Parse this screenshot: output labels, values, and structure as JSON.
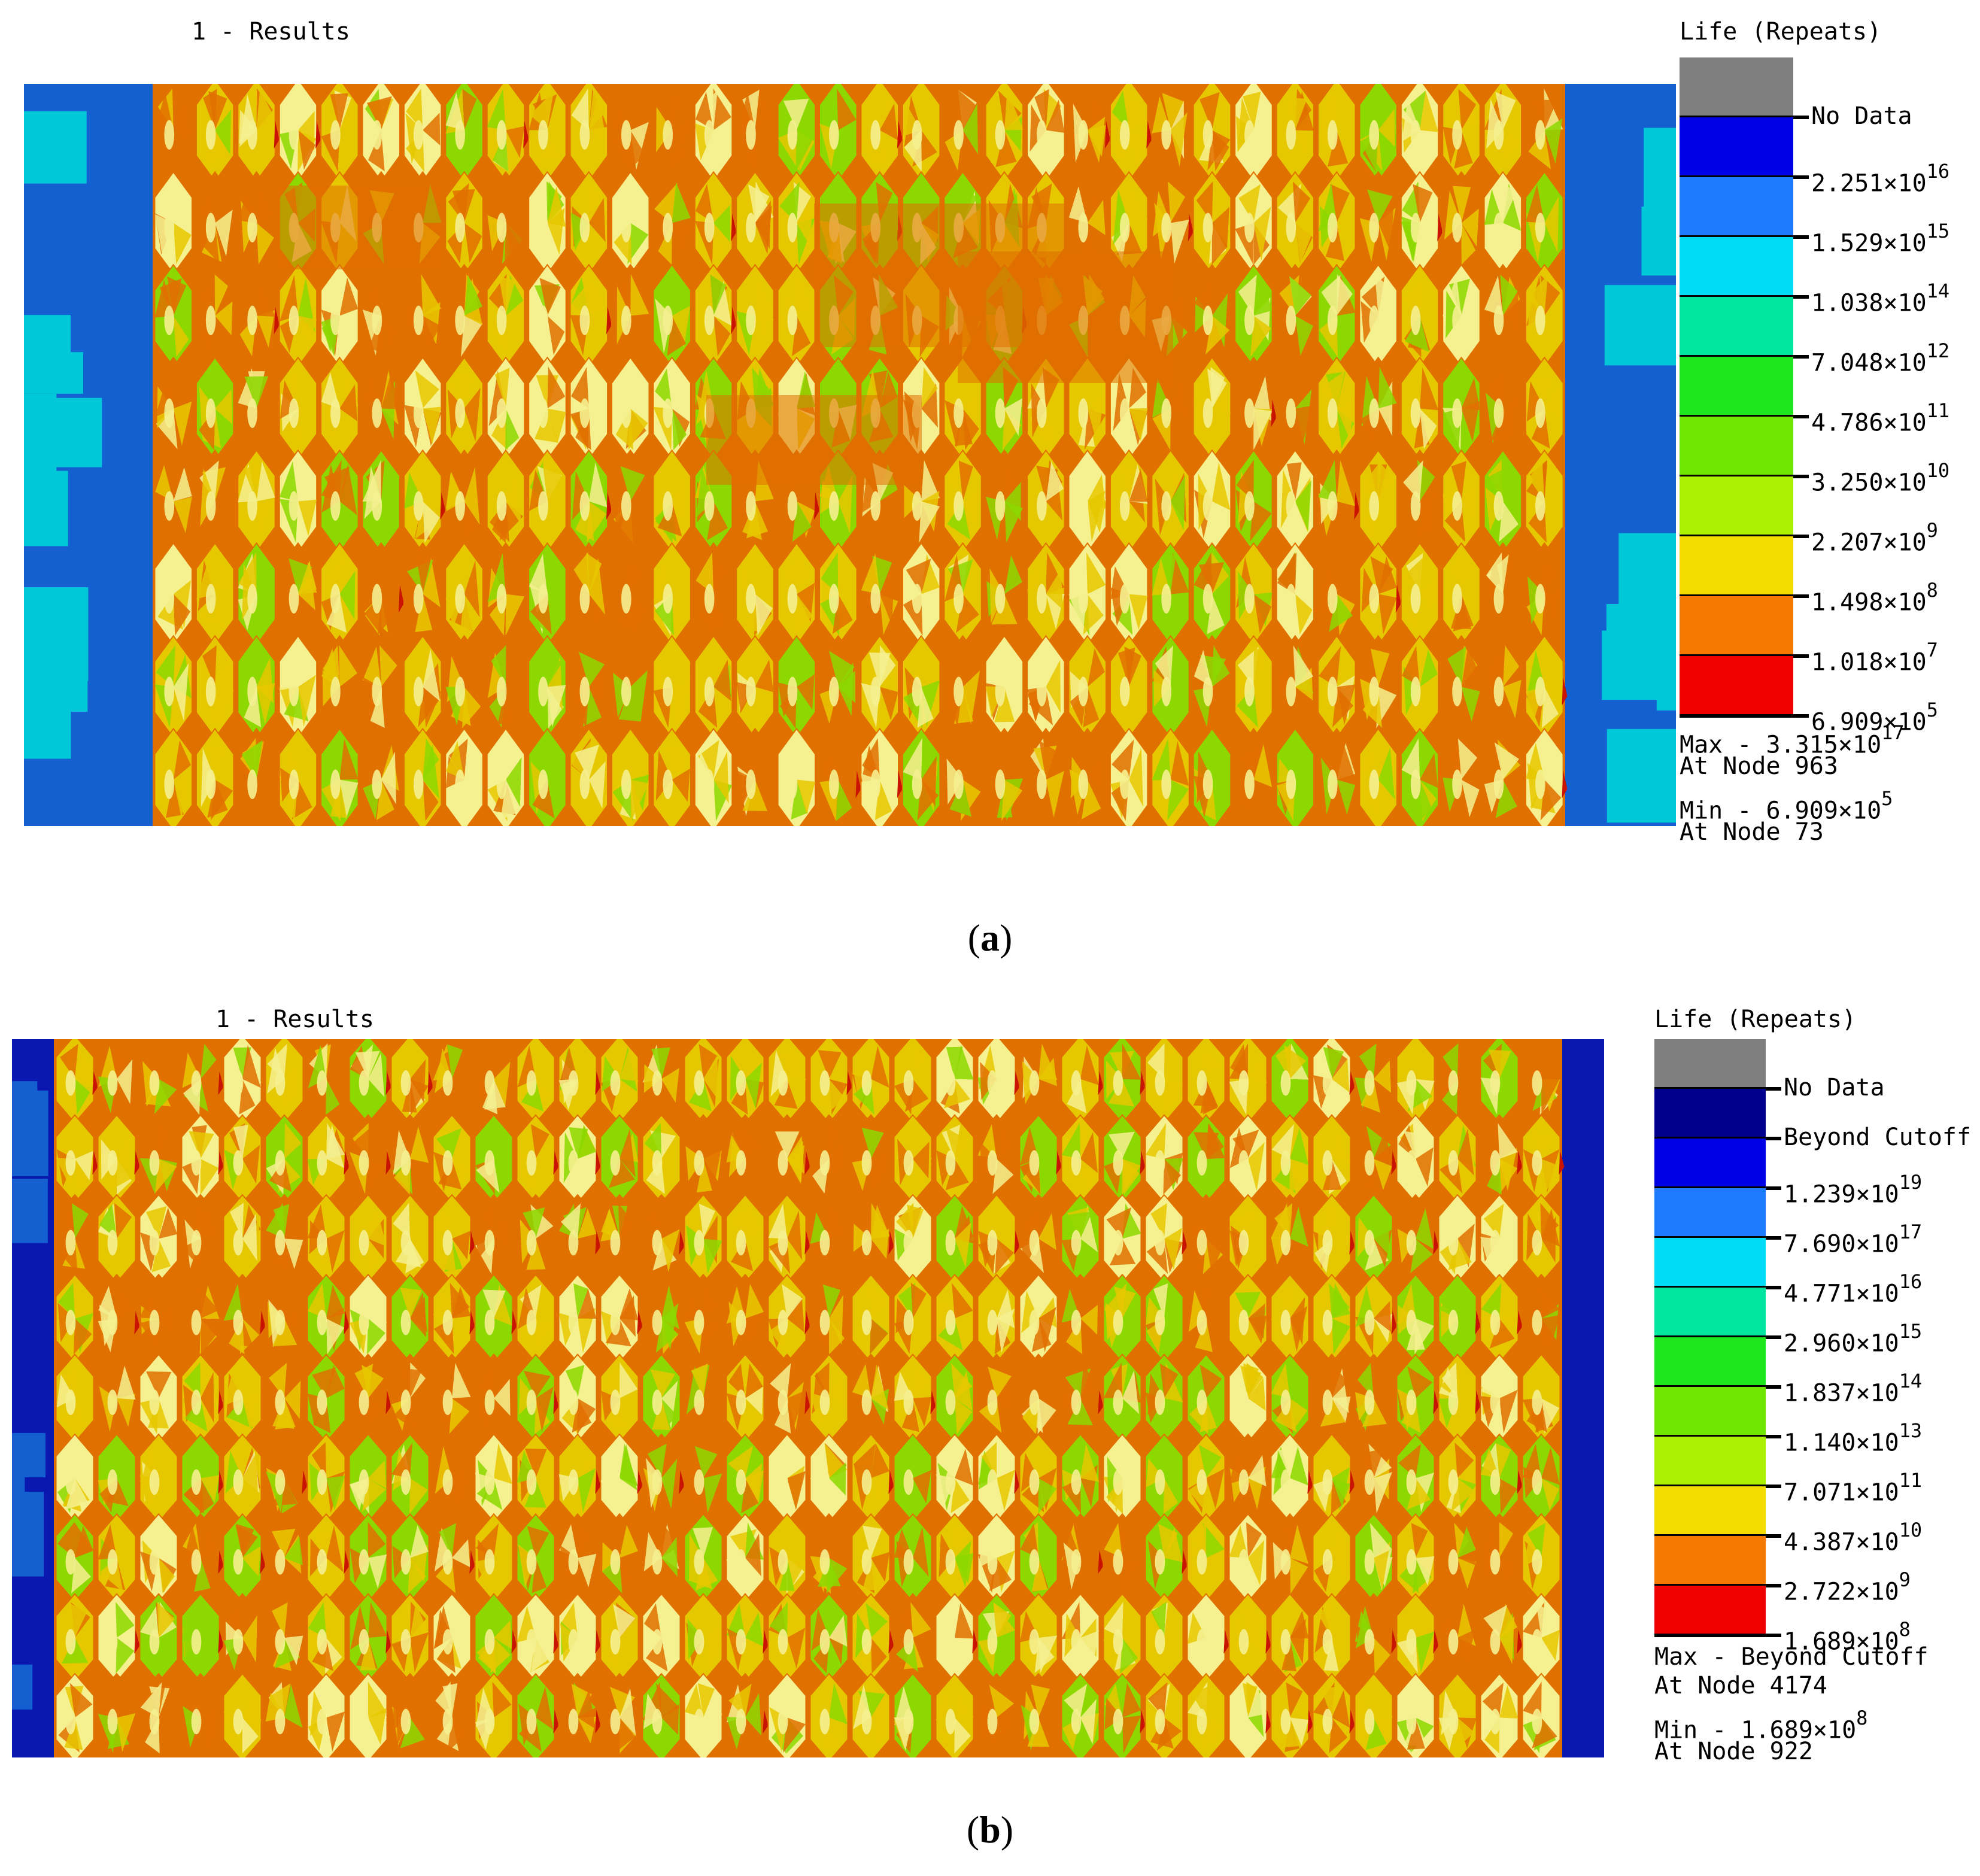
{
  "panels": [
    {
      "id": "a",
      "results_title": "1 - Results",
      "legend_title": "Life (Repeats)",
      "bands": [
        {
          "color": "#7f7f7f",
          "label_mant": "No Data",
          "label_exp": ""
        },
        {
          "color": "#0000e6",
          "label_mant": "2.251×10",
          "label_exp": "16"
        },
        {
          "color": "#1e7bff",
          "label_mant": "1.529×10",
          "label_exp": "15"
        },
        {
          "color": "#00dcf5",
          "label_mant": "1.038×10",
          "label_exp": "14"
        },
        {
          "color": "#00e6a0",
          "label_mant": "7.048×10",
          "label_exp": "12"
        },
        {
          "color": "#1ee61e",
          "label_mant": "4.786×10",
          "label_exp": "11"
        },
        {
          "color": "#6ee600",
          "label_mant": "3.250×10",
          "label_exp": "10"
        },
        {
          "color": "#aaf000",
          "label_mant": "2.207×10",
          "label_exp": "9"
        },
        {
          "color": "#f5dc00",
          "label_mant": "1.498×10",
          "label_exp": "8"
        },
        {
          "color": "#f57800",
          "label_mant": "1.018×10",
          "label_exp": "7"
        },
        {
          "color": "#f00000",
          "label_mant": "6.909×10",
          "label_exp": "5"
        }
      ],
      "max_line": {
        "text": "Max - 3.315×10",
        "exp": "17"
      },
      "max_node": "At Node 963",
      "min_line": {
        "text": "Min - 6.909×10",
        "exp": "5"
      },
      "min_node": "At Node 73",
      "caption_letter": "a"
    },
    {
      "id": "b",
      "results_title": "1 - Results",
      "legend_title": "Life (Repeats)",
      "bands": [
        {
          "color": "#7f7f7f",
          "label_mant": "No Data",
          "label_exp": ""
        },
        {
          "color": "#00008c",
          "label_mant": "Beyond Cutoff",
          "label_exp": ""
        },
        {
          "color": "#0000e6",
          "label_mant": "1.239×10",
          "label_exp": "19"
        },
        {
          "color": "#1e7bff",
          "label_mant": "7.690×10",
          "label_exp": "17"
        },
        {
          "color": "#00dcf5",
          "label_mant": "4.771×10",
          "label_exp": "16"
        },
        {
          "color": "#00e6a0",
          "label_mant": "2.960×10",
          "label_exp": "15"
        },
        {
          "color": "#1ee61e",
          "label_mant": "1.837×10",
          "label_exp": "14"
        },
        {
          "color": "#6ee600",
          "label_mant": "1.140×10",
          "label_exp": "13"
        },
        {
          "color": "#aaf000",
          "label_mant": "7.071×10",
          "label_exp": "11"
        },
        {
          "color": "#f5dc00",
          "label_mant": "4.387×10",
          "label_exp": "10"
        },
        {
          "color": "#f57800",
          "label_mant": "2.722×10",
          "label_exp": "9"
        },
        {
          "color": "#f00000",
          "label_mant": "1.689×10",
          "label_exp": "8"
        }
      ],
      "max_line": {
        "text": "Max - Beyond Cutoff",
        "exp": ""
      },
      "max_node": "At Node 4174",
      "min_line": {
        "text": "Min - 1.689×10",
        "exp": "8"
      },
      "min_node": "At Node 922",
      "caption_letter": "b"
    }
  ],
  "colors": {
    "edge_blue": "#1560d0",
    "edge_cyan": "#00c8d8",
    "edge_teal": "#00c89a",
    "edge_navy": "#0a18b0",
    "cell_yellow": "#e6c800",
    "cell_orange": "#e07000",
    "cell_light": "#f5f090",
    "cell_green": "#8cd800",
    "cell_red": "#c81400"
  }
}
